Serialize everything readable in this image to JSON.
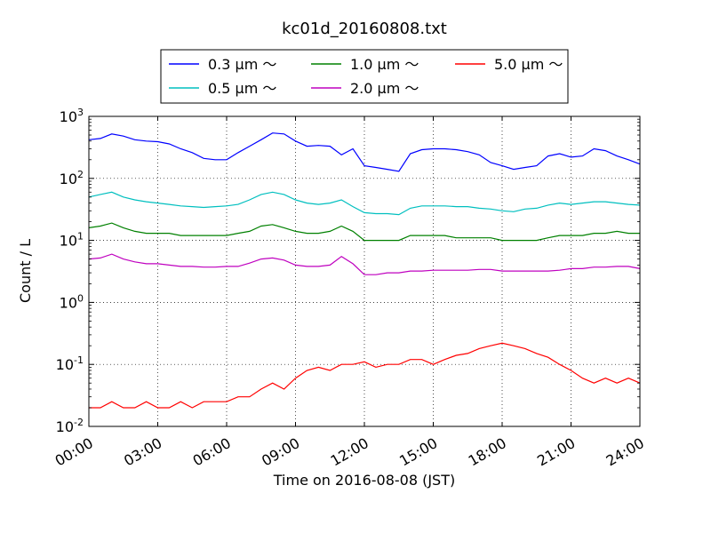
{
  "chart_data": {
    "type": "line",
    "title": "kc01d_20160808.txt",
    "xlabel": "Time on 2016-08-08 (JST)",
    "ylabel": "Count / L",
    "yscale": "log",
    "ylim": [
      0.01,
      1000
    ],
    "xlim": [
      "00:00",
      "24:00"
    ],
    "x_ticks": [
      "00:00",
      "03:00",
      "06:00",
      "09:00",
      "12:00",
      "15:00",
      "18:00",
      "21:00",
      "24:00"
    ],
    "y_ticks": [
      {
        "base": "10",
        "exp": "-2"
      },
      {
        "base": "10",
        "exp": "-1"
      },
      {
        "base": "10",
        "exp": "0"
      },
      {
        "base": "10",
        "exp": "1"
      },
      {
        "base": "10",
        "exp": "2"
      },
      {
        "base": "10",
        "exp": "3"
      }
    ],
    "grid": true,
    "legend_position": "top-center",
    "x_hours": [
      0,
      0.5,
      1,
      1.5,
      2,
      2.5,
      3,
      3.5,
      4,
      4.5,
      5,
      5.5,
      6,
      6.5,
      7,
      7.5,
      8,
      8.5,
      9,
      9.5,
      10,
      10.5,
      11,
      11.5,
      12,
      12.5,
      13,
      13.5,
      14,
      14.5,
      15,
      15.5,
      16,
      16.5,
      17,
      17.5,
      18,
      18.5,
      19,
      19.5,
      20,
      20.5,
      21,
      21.5,
      22,
      22.5,
      23,
      23.5,
      24
    ],
    "series": [
      {
        "name": "0.3 μm ～",
        "color": "#0000ff",
        "values": [
          420,
          440,
          520,
          480,
          420,
          400,
          390,
          360,
          300,
          260,
          210,
          200,
          200,
          260,
          330,
          420,
          540,
          520,
          400,
          330,
          340,
          330,
          240,
          300,
          160,
          150,
          140,
          130,
          250,
          290,
          300,
          300,
          290,
          270,
          240,
          180,
          160,
          140,
          150,
          160,
          230,
          250,
          220,
          230,
          300,
          280,
          230,
          200,
          170
        ]
      },
      {
        "name": "0.5 μm ～",
        "color": "#00bfbf",
        "values": [
          50,
          55,
          60,
          50,
          45,
          42,
          40,
          38,
          36,
          35,
          34,
          35,
          36,
          38,
          45,
          55,
          60,
          55,
          45,
          40,
          38,
          40,
          45,
          35,
          28,
          27,
          27,
          26,
          33,
          36,
          36,
          36,
          35,
          35,
          33,
          32,
          30,
          29,
          32,
          33,
          37,
          40,
          38,
          40,
          42,
          42,
          40,
          38,
          37
        ]
      },
      {
        "name": "1.0 μm ～",
        "color": "#008000",
        "values": [
          16,
          17,
          19,
          16,
          14,
          13,
          13,
          13,
          12,
          12,
          12,
          12,
          12,
          13,
          14,
          17,
          18,
          16,
          14,
          13,
          13,
          14,
          17,
          14,
          10,
          10,
          10,
          10,
          12,
          12,
          12,
          12,
          11,
          11,
          11,
          11,
          10,
          10,
          10,
          10,
          11,
          12,
          12,
          12,
          13,
          13,
          14,
          13,
          13
        ]
      },
      {
        "name": "2.0 μm ～",
        "color": "#bf00bf",
        "values": [
          5,
          5.2,
          6,
          5,
          4.5,
          4.2,
          4.2,
          4,
          3.8,
          3.8,
          3.7,
          3.7,
          3.8,
          3.8,
          4.3,
          5,
          5.2,
          4.8,
          4,
          3.8,
          3.8,
          4,
          5.5,
          4.2,
          2.8,
          2.8,
          3,
          3,
          3.2,
          3.2,
          3.3,
          3.3,
          3.3,
          3.3,
          3.4,
          3.4,
          3.2,
          3.2,
          3.2,
          3.2,
          3.2,
          3.3,
          3.5,
          3.5,
          3.7,
          3.7,
          3.8,
          3.8,
          3.5
        ]
      },
      {
        "name": "5.0 μm ～",
        "color": "#ff0000",
        "values": [
          0.02,
          0.02,
          0.025,
          0.02,
          0.02,
          0.025,
          0.02,
          0.02,
          0.025,
          0.02,
          0.025,
          0.025,
          0.025,
          0.03,
          0.03,
          0.04,
          0.05,
          0.04,
          0.06,
          0.08,
          0.09,
          0.08,
          0.1,
          0.1,
          0.11,
          0.09,
          0.1,
          0.1,
          0.12,
          0.12,
          0.1,
          0.12,
          0.14,
          0.15,
          0.18,
          0.2,
          0.22,
          0.2,
          0.18,
          0.15,
          0.13,
          0.1,
          0.08,
          0.06,
          0.05,
          0.06,
          0.05,
          0.06,
          0.05
        ]
      }
    ]
  }
}
